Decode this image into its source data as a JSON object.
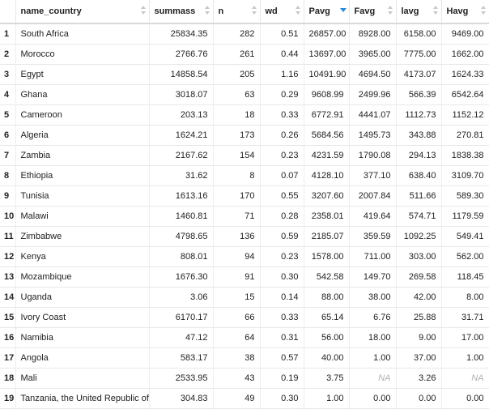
{
  "columns": [
    {
      "key": "rn",
      "label": "",
      "sort": "none"
    },
    {
      "key": "name_country",
      "label": "name_country",
      "sort": "none"
    },
    {
      "key": "summass",
      "label": "summass",
      "sort": "none"
    },
    {
      "key": "n",
      "label": "n",
      "sort": "none"
    },
    {
      "key": "wd",
      "label": "wd",
      "sort": "none"
    },
    {
      "key": "Pavg",
      "label": "Pavg",
      "sort": "desc"
    },
    {
      "key": "Favg",
      "label": "Favg",
      "sort": "none"
    },
    {
      "key": "lavg",
      "label": "lavg",
      "sort": "none"
    },
    {
      "key": "Havg",
      "label": "Havg",
      "sort": "none"
    }
  ],
  "rows": [
    [
      "1",
      "South Africa",
      "25834.35",
      "282",
      "0.51",
      "26857.00",
      "8928.00",
      "6158.00",
      "9469.00"
    ],
    [
      "2",
      "Morocco",
      "2766.76",
      "261",
      "0.44",
      "13697.00",
      "3965.00",
      "7775.00",
      "1662.00"
    ],
    [
      "3",
      "Egypt",
      "14858.54",
      "205",
      "1.16",
      "10491.90",
      "4694.50",
      "4173.07",
      "1624.33"
    ],
    [
      "4",
      "Ghana",
      "3018.07",
      "63",
      "0.29",
      "9608.99",
      "2499.96",
      "566.39",
      "6542.64"
    ],
    [
      "5",
      "Cameroon",
      "203.13",
      "18",
      "0.33",
      "6772.91",
      "4441.07",
      "1112.73",
      "1152.12"
    ],
    [
      "6",
      "Algeria",
      "1624.21",
      "173",
      "0.26",
      "5684.56",
      "1495.73",
      "343.88",
      "270.81"
    ],
    [
      "7",
      "Zambia",
      "2167.62",
      "154",
      "0.23",
      "4231.59",
      "1790.08",
      "294.13",
      "1838.38"
    ],
    [
      "8",
      "Ethiopia",
      "31.62",
      "8",
      "0.07",
      "4128.10",
      "377.10",
      "638.40",
      "3109.70"
    ],
    [
      "9",
      "Tunisia",
      "1613.16",
      "170",
      "0.55",
      "3207.60",
      "2007.84",
      "511.66",
      "589.30"
    ],
    [
      "10",
      "Malawi",
      "1460.81",
      "71",
      "0.28",
      "2358.01",
      "419.64",
      "574.71",
      "1179.59"
    ],
    [
      "11",
      "Zimbabwe",
      "4798.65",
      "136",
      "0.59",
      "2185.07",
      "359.59",
      "1092.25",
      "549.41"
    ],
    [
      "12",
      "Kenya",
      "808.01",
      "94",
      "0.23",
      "1578.00",
      "711.00",
      "303.00",
      "562.00"
    ],
    [
      "13",
      "Mozambique",
      "1676.30",
      "91",
      "0.30",
      "542.58",
      "149.70",
      "269.58",
      "118.45"
    ],
    [
      "14",
      "Uganda",
      "3.06",
      "15",
      "0.14",
      "88.00",
      "38.00",
      "42.00",
      "8.00"
    ],
    [
      "15",
      "Ivory Coast",
      "6170.17",
      "66",
      "0.33",
      "65.14",
      "6.76",
      "25.88",
      "31.71"
    ],
    [
      "16",
      "Namibia",
      "47.12",
      "64",
      "0.31",
      "56.00",
      "18.00",
      "9.00",
      "17.00"
    ],
    [
      "17",
      "Angola",
      "583.17",
      "38",
      "0.57",
      "40.00",
      "1.00",
      "37.00",
      "1.00"
    ],
    [
      "18",
      "Mali",
      "2533.95",
      "43",
      "0.19",
      "3.75",
      "NA",
      "3.26",
      "NA"
    ],
    [
      "19",
      "Tanzania, the United Republic of",
      "304.83",
      "49",
      "0.30",
      "1.00",
      "0.00",
      "0.00",
      "0.00"
    ]
  ],
  "colors": {
    "sort_active": "#2a8ad4",
    "sort_inactive": "#c8c8c8",
    "na_text": "#b0b0b0"
  }
}
